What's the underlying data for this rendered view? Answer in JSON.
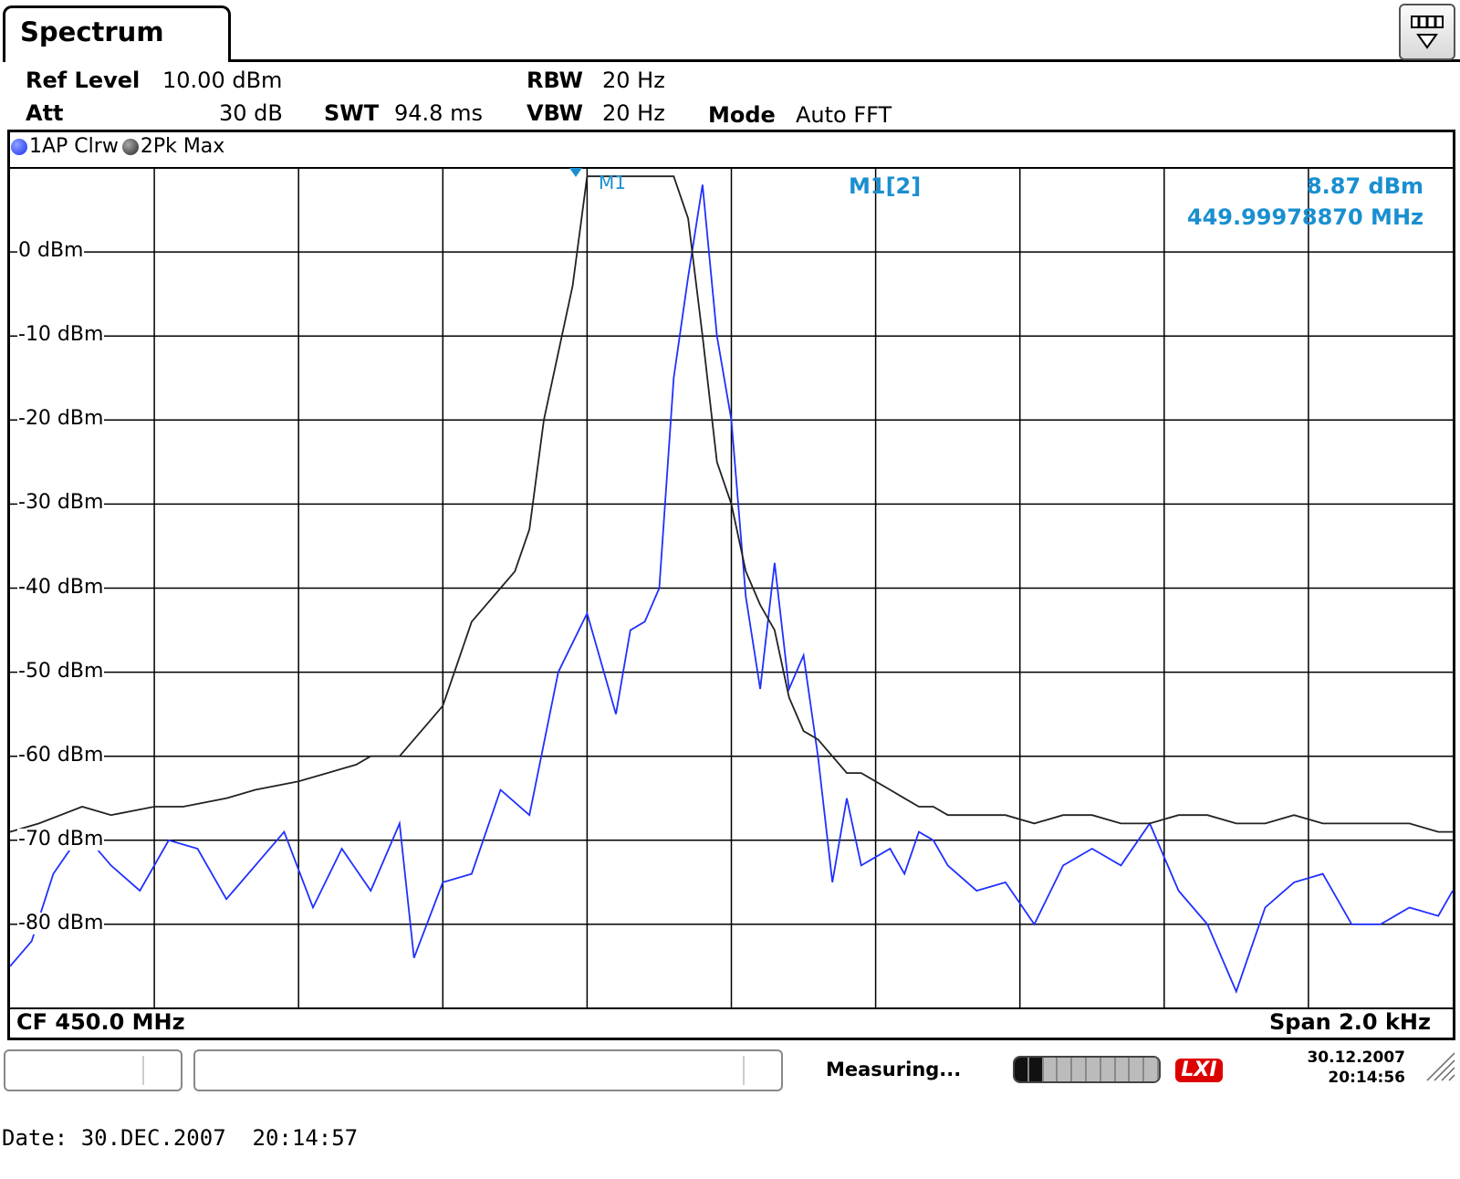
{
  "tab": {
    "title": "Spectrum"
  },
  "header": {
    "ref_level_label": "Ref Level",
    "ref_level_value": "10.00 dBm",
    "att_label": "Att",
    "att_value": "30 dB",
    "swt_label": "SWT",
    "swt_value": "94.8 ms",
    "rbw_label": "RBW",
    "rbw_value": "20 Hz",
    "vbw_label": "VBW",
    "vbw_value": "20 Hz",
    "mode_label": "Mode",
    "mode_value": "Auto FFT"
  },
  "traces": [
    {
      "label": "1AP Clrw",
      "color": "#2030ff"
    },
    {
      "label": "2Pk Max",
      "color": "#222222"
    }
  ],
  "marker": {
    "name": "M1",
    "readout_name": "M1[2]",
    "level": "8.87 dBm",
    "frequency": "449.99978870 MHz",
    "color": "#1a8fd0"
  },
  "axis": {
    "y_labels": [
      "0 dBm",
      "-10 dBm",
      "-20 dBm",
      "-30 dBm",
      "-40 dBm",
      "-50 dBm",
      "-60 dBm",
      "-70 dBm",
      "-80 dBm"
    ],
    "cf": "CF 450.0 MHz",
    "span": "Span 2.0 kHz"
  },
  "status": {
    "measuring": "Measuring...",
    "progress": 0.2,
    "lxi_logo": "LXI",
    "date": "30.12.2007",
    "time": "20:14:56"
  },
  "footer": {
    "date_text": "Date: 30.DEC.2007  20:14:57"
  },
  "chart_data": {
    "type": "line",
    "xlabel": "",
    "ylabel": "",
    "x_range_hz": [
      -1000,
      1000
    ],
    "ylim": [
      -90,
      10
    ],
    "grid": true,
    "series": [
      {
        "name": "1AP Clrw",
        "color": "#2030ff",
        "x": [
          -1000,
          -970,
          -940,
          -900,
          -860,
          -820,
          -780,
          -740,
          -700,
          -660,
          -620,
          -580,
          -540,
          -500,
          -460,
          -440,
          -400,
          -360,
          -320,
          -280,
          -240,
          -200,
          -160,
          -140,
          -120,
          -100,
          -80,
          -60,
          -40,
          -20,
          0,
          20,
          40,
          60,
          80,
          100,
          120,
          140,
          160,
          180,
          200,
          220,
          240,
          260,
          280,
          300,
          340,
          380,
          420,
          460,
          500,
          540,
          580,
          620,
          660,
          700,
          740,
          780,
          820,
          860,
          900,
          940,
          980,
          1000
        ],
        "y": [
          -85,
          -82,
          -74,
          -69,
          -73,
          -76,
          -70,
          -71,
          -77,
          -73,
          -69,
          -78,
          -71,
          -76,
          -68,
          -84,
          -75,
          -74,
          -64,
          -67,
          -50,
          -43,
          -55,
          -45,
          -44,
          -40,
          -15,
          -3,
          8,
          -10,
          -20,
          -41,
          -52,
          -37,
          -52,
          -48,
          -60,
          -75,
          -65,
          -73,
          -72,
          -71,
          -74,
          -69,
          -70,
          -73,
          -76,
          -75,
          -80,
          -73,
          -71,
          -73,
          -68,
          -76,
          -80,
          -88,
          -78,
          -75,
          -74,
          -80,
          -80,
          -78,
          -79,
          -76
        ]
      },
      {
        "name": "2Pk Max",
        "color": "#222222",
        "x": [
          -1000,
          -960,
          -900,
          -860,
          -800,
          -760,
          -700,
          -660,
          -600,
          -560,
          -520,
          -500,
          -480,
          -460,
          -440,
          -420,
          -400,
          -380,
          -360,
          -340,
          -320,
          -300,
          -280,
          -260,
          -240,
          -220,
          -200,
          -180,
          -160,
          -140,
          -120,
          -100,
          -80,
          -60,
          -40,
          -20,
          0,
          20,
          40,
          60,
          80,
          100,
          120,
          140,
          160,
          180,
          200,
          220,
          240,
          260,
          280,
          300,
          340,
          380,
          420,
          460,
          500,
          540,
          580,
          620,
          660,
          700,
          740,
          780,
          820,
          860,
          900,
          940,
          980,
          1000
        ],
        "y": [
          -69,
          -68,
          -66,
          -67,
          -66,
          -66,
          -65,
          -64,
          -63,
          -62,
          -61,
          -60,
          -60,
          -60,
          -58,
          -56,
          -54,
          -49,
          -44,
          -42,
          -40,
          -38,
          -33,
          -20,
          -12,
          -4,
          9,
          9,
          9,
          9,
          9,
          9,
          9,
          4,
          -10,
          -25,
          -30,
          -38,
          -42,
          -45,
          -53,
          -57,
          -58,
          -60,
          -62,
          -62,
          -63,
          -64,
          -65,
          -66,
          -66,
          -67,
          -67,
          -67,
          -68,
          -67,
          -67,
          -68,
          -68,
          -67,
          -67,
          -68,
          -68,
          -67,
          -68,
          -68,
          -68,
          -68,
          -69,
          -69
        ]
      }
    ]
  }
}
